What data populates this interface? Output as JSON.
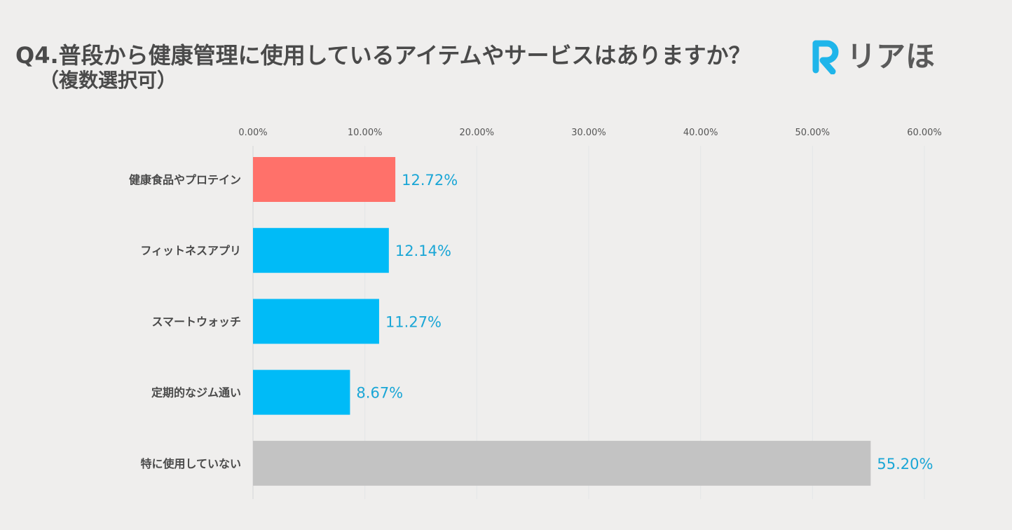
{
  "title": "Q4.普段から健康管理に使用しているアイテムやサービスはありますか？",
  "subtitle": "（複数選択可）",
  "logo": {
    "text": "リアほ",
    "mark": "R",
    "color": "#1fb5ea"
  },
  "chart_data": {
    "type": "bar",
    "orientation": "horizontal",
    "categories": [
      "健康食品やプロテイン",
      "フィットネスアプリ",
      "スマートウォッチ",
      "定期的なジム通い",
      "特に使用していない"
    ],
    "values": [
      12.72,
      12.14,
      11.27,
      8.67,
      55.2
    ],
    "value_labels": [
      "12.72%",
      "12.14%",
      "11.27%",
      "8.67%",
      "55.20%"
    ],
    "bar_colors": [
      "#ff716a",
      "#00bbf7",
      "#00bbf7",
      "#00bbf7",
      "#c3c3c3"
    ],
    "label_color": "#1aa6d6",
    "xlim": [
      0,
      60
    ],
    "ticks": [
      0,
      10,
      20,
      30,
      40,
      50,
      60
    ],
    "tick_labels": [
      "0.00%",
      "10.00%",
      "20.00%",
      "30.00%",
      "40.00%",
      "50.00%",
      "60.00%"
    ],
    "axis_position": "top",
    "grid": true
  }
}
